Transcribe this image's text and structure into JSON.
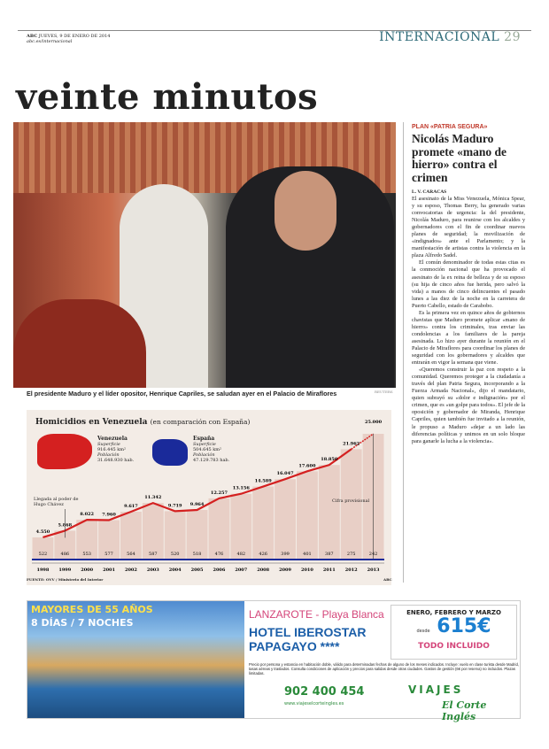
{
  "header": {
    "paper": "ABC",
    "date": "JUEVES, 9 DE ENERO DE 2014",
    "web": "abc.es/internacional",
    "section": "INTERNACIONAL",
    "page": "29"
  },
  "headline": "veinte minutos",
  "photo": {
    "caption": "El presidente Maduro y el líder opositor, Henrique Capriles, se saludan ayer en el Palacio de Miraflores",
    "credit": "REUTERS"
  },
  "article": {
    "kicker": "PLAN «PATRIA SEGURA»",
    "title": "Nicolás Maduro promete «mano de hierro» contra el crimen",
    "byline": "L. V. CARACAS",
    "paragraphs": [
      "El asesinato de la Miss Venezuela, Mónica Spear, y su esposo, Thomas Berry, ha generado varias convocatorias de urgencia: la del presidente, Nicolás Maduro, para reunirse con los alcaldes y gobernadores con el fin de coordinar nuevos planes de seguridad; la movilización de «indignados» ante el Parlamento; y la manifestación de artistas contra la violencia en la plaza Alfredo Sadel.",
      "El común denominador de todas estas citas es la conmoción nacional que ha provocado el asesinato de la ex reina de belleza y de su esposo (su hija de cinco años fue herida, pero salvó la vida) a manos de cinco delincuentes el pasado lunes a las diez de la noche en la carretera de Puerto Cabello, estado de Carabobo.",
      "Es la primera vez en quince años de gobiernos chavistas que Maduro promete aplicar «mano de hierro» contra los criminales, tras enviar las condolencias a los familiares de la pareja asesinada. Lo hizo ayer durante la reunión en el Palacio de Miraflores para coordinar los planes de seguridad con los gobernadores y alcaldes que entrarán en vigor la semana que viene.",
      "«Queremos construir la paz con respeto a la comunidad. Queremos proteger a la ciudadanía a través del plan Patria Segura, incorporando a la Fuerza Armada Nacional», dijo el mandatario, quien subrayó su «dolor e indignación» por el crimen, que es «un golpe para todos». El jefe de la oposición y gobernador de Miranda, Henrique Capriles, quien también fue invitado a la reunión, le propuso a Maduro «dejar a un lado las diferencias políticas y unimos en un solo bloque para ganarle la lucha a la violencia»."
    ]
  },
  "chart_data": {
    "type": "bar",
    "title": "Homicidios en Venezuela",
    "subtitle": "(en comparación con España)",
    "categories": [
      "1998",
      "1999",
      "2000",
      "2001",
      "2002",
      "2003",
      "2004",
      "2005",
      "2006",
      "2007",
      "2008",
      "2009",
      "2010",
      "2011",
      "2012",
      "2013"
    ],
    "series": [
      {
        "name": "Venezuela",
        "values": [
          4550,
          5868,
          8022,
          7960,
          9617,
          11342,
          9719,
          9964,
          12257,
          13156,
          14589,
          16047,
          17600,
          18850,
          21962,
          25000
        ],
        "labels": [
          "4.550",
          "5.868",
          "8.022",
          "7.960",
          "9.617",
          "11.342",
          "9.719",
          "9.964",
          "12.257",
          "13.156",
          "14.589",
          "16.047",
          "17.600",
          "18.850",
          "21.962",
          "25.000"
        ],
        "color": "#d42020"
      },
      {
        "name": "España",
        "values": [
          522,
          486,
          553,
          577,
          564,
          587,
          520,
          518,
          476,
          482,
          426,
          399,
          401,
          387,
          275,
          242
        ],
        "color": "#1a2a9a"
      }
    ],
    "ylim": [
      0,
      25000
    ],
    "annotations": [
      "Llegada al poder de Hugo Chávez",
      "Cifra provisional"
    ],
    "countries": [
      {
        "name": "Venezuela",
        "area_label": "Superficie",
        "area": "916.445 km²",
        "pop_label": "Población",
        "pop": "31.648.930 hab.",
        "color": "#d42020"
      },
      {
        "name": "España",
        "area_label": "Superficie",
        "area": "504.645 km²",
        "pop_label": "Población",
        "pop": "47.129.783 hab.",
        "color": "#1a2a9a"
      }
    ],
    "source": "FUENTE: OVV / Ministerio del Interior",
    "credit": "ABC",
    "bar_color": "#e8cfc6"
  },
  "ad": {
    "t1": "MAYORES DE 55 AÑOS",
    "t2": "8 DÍAS / 7 NOCHES",
    "location": "LANZAROTE - Playa Blanca",
    "hotel": "HOTEL IBEROSTAR PAPAGAYO ****",
    "months": "ENERO, FEBRERO Y MARZO",
    "desde": "desde",
    "price": "615€",
    "todo": "TODO INCLUIDO",
    "fine": "Precio por persona y estancia en habitación doble, válido para determinadas fechas de alguno de los meses indicados. Incluye: vuelo en clase turista desde Madrid, tasas aéreas y traslados. Consulta condiciones de aplicación y precios para salidas desde otras ciudades. Gastos de gestión (6€ por reserva) no incluidos. Plazas limitadas.",
    "phone": "902 400 454",
    "web": "www.viajeselcorteingles.es",
    "brand1": "VIAJES",
    "brand2": "El Corte Inglés"
  }
}
